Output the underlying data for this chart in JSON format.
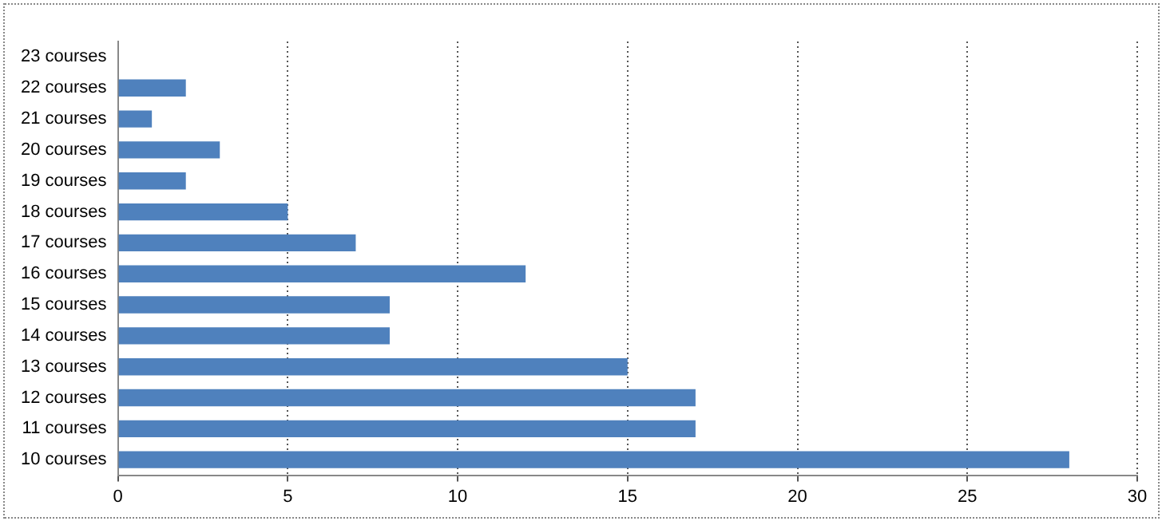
{
  "chart_data": {
    "type": "bar",
    "orientation": "horizontal",
    "categories": [
      "23 courses",
      "22 courses",
      "21 courses",
      "20 courses",
      "19 courses",
      "18 courses",
      "17 courses",
      "16 courses",
      "15 courses",
      "14 courses",
      "13 courses",
      "12 courses",
      "11 courses",
      "10 courses"
    ],
    "values": [
      0,
      2,
      1,
      3,
      2,
      5,
      7,
      12,
      8,
      8,
      15,
      17,
      17,
      28
    ],
    "color": "#4f81bd",
    "xlim": [
      0,
      30
    ],
    "xticks": [
      0,
      5,
      10,
      15,
      20,
      25,
      30
    ],
    "grid": "x"
  }
}
